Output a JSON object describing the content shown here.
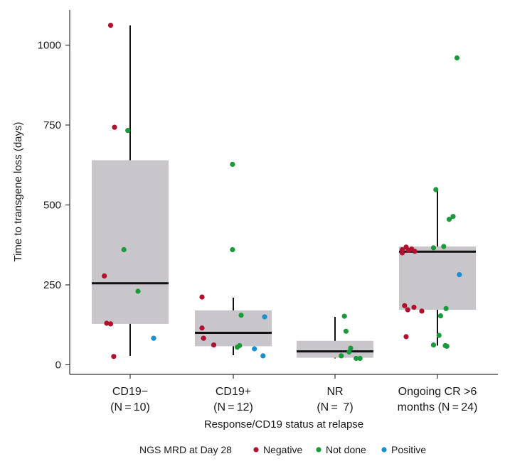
{
  "chart_data": {
    "type": "box",
    "xlabel": "Response/CD19 status at relapse",
    "ylabel": "Time to transgene loss (days)",
    "ylim": [
      -40,
      1120
    ],
    "yticks": [
      0,
      250,
      500,
      750,
      1000
    ],
    "grid": false,
    "legend": {
      "title": "NGS MRD at Day 28",
      "placement": "bottom",
      "entries": [
        {
          "key": "negative",
          "label": "Negative",
          "color": "#b0112e"
        },
        {
          "key": "not_done",
          "label": "Not done",
          "color": "#1a9a3a"
        },
        {
          "key": "positive",
          "label": "Positive",
          "color": "#1a8fcf"
        }
      ]
    },
    "groups": [
      {
        "label_line1": "CD19−",
        "label_line2": "(N = 10)",
        "box": {
          "min": 28,
          "q1": 128,
          "median": 255,
          "q3": 640,
          "max": 1062
        },
        "points": [
          {
            "y": 1062,
            "mrd": "negative",
            "jitter": -0.25
          },
          {
            "y": 743,
            "mrd": "negative",
            "jitter": -0.2
          },
          {
            "y": 733,
            "mrd": "not_done",
            "jitter": -0.03
          },
          {
            "y": 360,
            "mrd": "not_done",
            "jitter": -0.08
          },
          {
            "y": 278,
            "mrd": "negative",
            "jitter": -0.33
          },
          {
            "y": 230,
            "mrd": "not_done",
            "jitter": 0.1
          },
          {
            "y": 130,
            "mrd": "negative",
            "jitter": -0.3
          },
          {
            "y": 128,
            "mrd": "negative",
            "jitter": -0.25
          },
          {
            "y": 83,
            "mrd": "positive",
            "jitter": 0.3
          },
          {
            "y": 26,
            "mrd": "negative",
            "jitter": -0.21
          }
        ]
      },
      {
        "label_line1": "CD19+",
        "label_line2": "(N = 12)",
        "box": {
          "min": 30,
          "q1": 58,
          "median": 100,
          "q3": 170,
          "max": 210
        },
        "points": [
          {
            "y": 627,
            "mrd": "not_done",
            "jitter": -0.01
          },
          {
            "y": 360,
            "mrd": "not_done",
            "jitter": -0.01
          },
          {
            "y": 212,
            "mrd": "negative",
            "jitter": -0.4
          },
          {
            "y": 155,
            "mrd": "not_done",
            "jitter": 0.1
          },
          {
            "y": 150,
            "mrd": "positive",
            "jitter": 0.4
          },
          {
            "y": 115,
            "mrd": "negative",
            "jitter": -0.4
          },
          {
            "y": 83,
            "mrd": "negative",
            "jitter": -0.38
          },
          {
            "y": 62,
            "mrd": "negative",
            "jitter": -0.25
          },
          {
            "y": 60,
            "mrd": "not_done",
            "jitter": 0.08
          },
          {
            "y": 55,
            "mrd": "not_done",
            "jitter": 0.05
          },
          {
            "y": 50,
            "mrd": "positive",
            "jitter": 0.27
          },
          {
            "y": 28,
            "mrd": "positive",
            "jitter": 0.38
          }
        ]
      },
      {
        "label_line1": "NR",
        "label_line2": "(N =  7)",
        "box": {
          "min": 20,
          "q1": 22,
          "median": 42,
          "q3": 75,
          "max": 150
        },
        "points": [
          {
            "y": 152,
            "mrd": "not_done",
            "jitter": 0.12
          },
          {
            "y": 105,
            "mrd": "not_done",
            "jitter": 0.14
          },
          {
            "y": 52,
            "mrd": "not_done",
            "jitter": 0.2
          },
          {
            "y": 40,
            "mrd": "not_done",
            "jitter": 0.18
          },
          {
            "y": 28,
            "mrd": "not_done",
            "jitter": 0.08
          },
          {
            "y": 20,
            "mrd": "not_done",
            "jitter": 0.27
          },
          {
            "y": 20,
            "mrd": "not_done",
            "jitter": 0.32
          }
        ]
      },
      {
        "label_line1": "Ongoing CR >6",
        "label_line2": "months (N = 24)",
        "box": {
          "min": 60,
          "q1": 172,
          "median": 354,
          "q3": 370,
          "max": 545
        },
        "points": [
          {
            "y": 960,
            "mrd": "not_done",
            "jitter": 0.25
          },
          {
            "y": 548,
            "mrd": "not_done",
            "jitter": -0.02
          },
          {
            "y": 464,
            "mrd": "not_done",
            "jitter": 0.2
          },
          {
            "y": 455,
            "mrd": "not_done",
            "jitter": 0.15
          },
          {
            "y": 370,
            "mrd": "not_done",
            "jitter": 0.08
          },
          {
            "y": 368,
            "mrd": "negative",
            "jitter": -0.4
          },
          {
            "y": 366,
            "mrd": "not_done",
            "jitter": -0.05
          },
          {
            "y": 362,
            "mrd": "negative",
            "jitter": -0.33
          },
          {
            "y": 360,
            "mrd": "negative",
            "jitter": -0.45
          },
          {
            "y": 358,
            "mrd": "negative",
            "jitter": -0.37
          },
          {
            "y": 355,
            "mrd": "negative",
            "jitter": -0.29
          },
          {
            "y": 350,
            "mrd": "negative",
            "jitter": -0.45
          },
          {
            "y": 282,
            "mrd": "positive",
            "jitter": 0.28
          },
          {
            "y": 185,
            "mrd": "negative",
            "jitter": -0.42
          },
          {
            "y": 180,
            "mrd": "negative",
            "jitter": -0.3
          },
          {
            "y": 176,
            "mrd": "not_done",
            "jitter": 0.11
          },
          {
            "y": 172,
            "mrd": "negative",
            "jitter": -0.38
          },
          {
            "y": 168,
            "mrd": "negative",
            "jitter": -0.2
          },
          {
            "y": 153,
            "mrd": "not_done",
            "jitter": 0.04
          },
          {
            "y": 92,
            "mrd": "not_done",
            "jitter": 0.02
          },
          {
            "y": 88,
            "mrd": "negative",
            "jitter": -0.4
          },
          {
            "y": 62,
            "mrd": "not_done",
            "jitter": -0.05
          },
          {
            "y": 60,
            "mrd": "not_done",
            "jitter": 0.1
          },
          {
            "y": 58,
            "mrd": "not_done",
            "jitter": 0.12
          }
        ]
      }
    ],
    "colors": {
      "box_fill": "#c9c6cb",
      "median": "#111111",
      "whisker": "#111111",
      "axis": "#333333"
    }
  }
}
